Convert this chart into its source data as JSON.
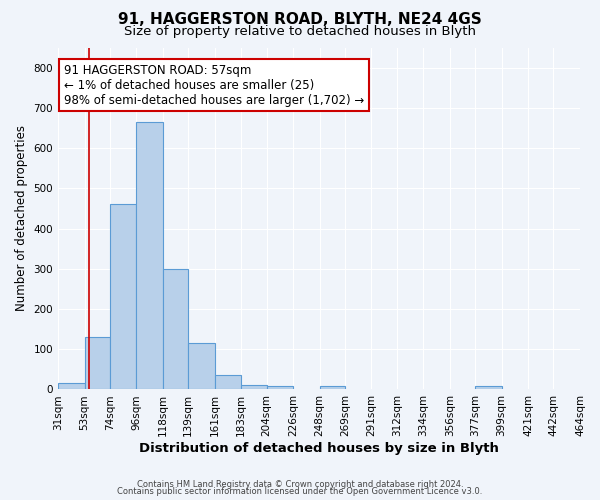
{
  "title": "91, HAGGERSTON ROAD, BLYTH, NE24 4GS",
  "subtitle": "Size of property relative to detached houses in Blyth",
  "xlabel": "Distribution of detached houses by size in Blyth",
  "ylabel": "Number of detached properties",
  "bin_edges": [
    31,
    53,
    74,
    96,
    118,
    139,
    161,
    183,
    204,
    226,
    248,
    269,
    291,
    312,
    334,
    356,
    377,
    399,
    421,
    442,
    464
  ],
  "bar_heights": [
    15,
    130,
    460,
    665,
    300,
    115,
    35,
    12,
    8,
    0,
    8,
    0,
    0,
    0,
    0,
    0,
    8,
    0,
    0,
    0
  ],
  "bar_color": "#b8d0ea",
  "bar_edge_color": "#5b9bd5",
  "ylim": [
    0,
    850
  ],
  "yticks": [
    0,
    100,
    200,
    300,
    400,
    500,
    600,
    700,
    800
  ],
  "property_size": 57,
  "vline_color": "#cc0000",
  "annotation_line1": "91 HAGGERSTON ROAD: 57sqm",
  "annotation_line2": "← 1% of detached houses are smaller (25)",
  "annotation_line3": "98% of semi-detached houses are larger (1,702) →",
  "annotation_box_color": "#cc0000",
  "footer_line1": "Contains HM Land Registry data © Crown copyright and database right 2024.",
  "footer_line2": "Contains public sector information licensed under the Open Government Licence v3.0.",
  "background_color": "#f0f4fa",
  "grid_color": "#ffffff",
  "title_fontsize": 11,
  "subtitle_fontsize": 9.5,
  "xlabel_fontsize": 9.5,
  "ylabel_fontsize": 8.5,
  "tick_fontsize": 7.5,
  "annotation_fontsize": 8.5
}
